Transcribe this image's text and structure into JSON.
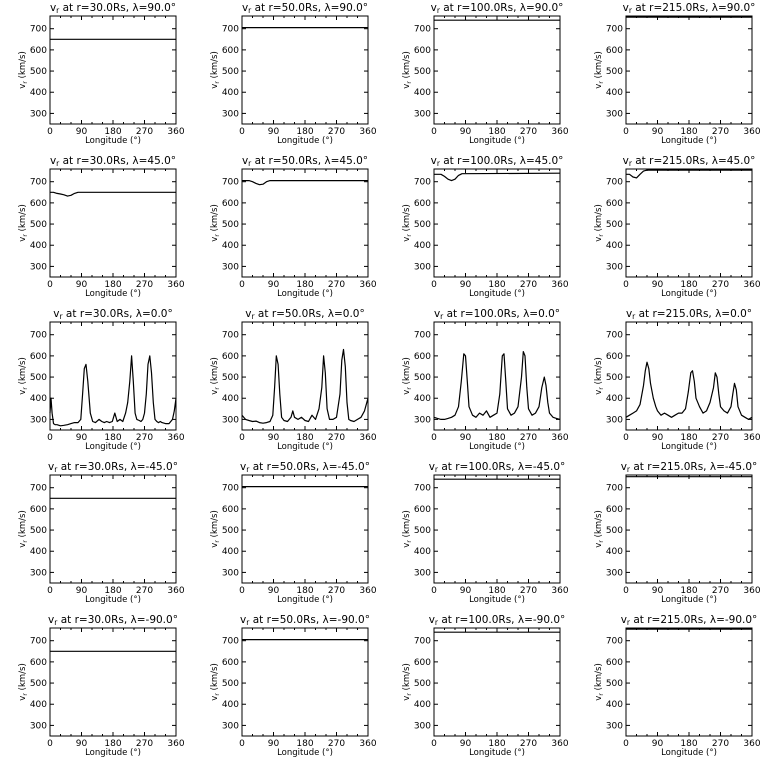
{
  "figure": {
    "background": "#ffffff",
    "line_color": "#000000"
  },
  "chart_data": [
    {
      "type": "line",
      "title_r": "30.0",
      "title_lambda": "90.0",
      "xlabel": "Longitude",
      "xunit": "(°)",
      "ylabel": "(km/s)",
      "xlim": [
        0,
        360
      ],
      "ylim": [
        250,
        760
      ],
      "xticks": [
        "0",
        "90",
        "180",
        "270",
        "360"
      ],
      "yticks": [
        "300",
        "400",
        "500",
        "600",
        "700"
      ],
      "x": [
        0,
        360
      ],
      "y": [
        650,
        650
      ]
    },
    {
      "type": "line",
      "title_r": "50.0",
      "title_lambda": "90.0",
      "xlabel": "Longitude",
      "xunit": "(°)",
      "ylabel": "(km/s)",
      "xlim": [
        0,
        360
      ],
      "ylim": [
        250,
        760
      ],
      "xticks": [
        "0",
        "90",
        "180",
        "270",
        "360"
      ],
      "yticks": [
        "300",
        "400",
        "500",
        "600",
        "700"
      ],
      "x": [
        0,
        360
      ],
      "y": [
        705,
        705
      ]
    },
    {
      "type": "line",
      "title_r": "100.0",
      "title_lambda": "90.0",
      "xlabel": "Longitude",
      "xunit": "(°)",
      "ylabel": "(km/s)",
      "xlim": [
        0,
        360
      ],
      "ylim": [
        250,
        760
      ],
      "xticks": [
        "0",
        "90",
        "180",
        "270",
        "360"
      ],
      "yticks": [
        "300",
        "400",
        "500",
        "600",
        "700"
      ],
      "x": [
        0,
        360
      ],
      "y": [
        740,
        740
      ]
    },
    {
      "type": "line",
      "title_r": "215.0",
      "title_lambda": "90.0",
      "xlabel": "Longitude",
      "xunit": "(°)",
      "ylabel": "(km/s)",
      "xlim": [
        0,
        360
      ],
      "ylim": [
        250,
        760
      ],
      "xticks": [
        "0",
        "90",
        "180",
        "270",
        "360"
      ],
      "yticks": [
        "300",
        "400",
        "500",
        "600",
        "700"
      ],
      "x": [
        0,
        360
      ],
      "y": [
        755,
        755
      ]
    },
    {
      "type": "line",
      "title_r": "30.0",
      "title_lambda": "45.0",
      "xlabel": "Longitude",
      "xunit": "(°)",
      "ylabel": "(km/s)",
      "xlim": [
        0,
        360
      ],
      "ylim": [
        250,
        760
      ],
      "xticks": [
        "0",
        "90",
        "180",
        "270",
        "360"
      ],
      "yticks": [
        "300",
        "400",
        "500",
        "600",
        "700"
      ],
      "x": [
        0,
        10,
        20,
        30,
        40,
        50,
        60,
        70,
        80,
        90,
        360
      ],
      "y": [
        650,
        650,
        645,
        642,
        638,
        632,
        636,
        645,
        650,
        650,
        650
      ]
    },
    {
      "type": "line",
      "title_r": "50.0",
      "title_lambda": "45.0",
      "xlabel": "Longitude",
      "xunit": "(°)",
      "ylabel": "(km/s)",
      "xlim": [
        0,
        360
      ],
      "ylim": [
        250,
        760
      ],
      "xticks": [
        "0",
        "90",
        "180",
        "270",
        "360"
      ],
      "yticks": [
        "300",
        "400",
        "500",
        "600",
        "700"
      ],
      "x": [
        0,
        20,
        30,
        40,
        50,
        60,
        70,
        80,
        360
      ],
      "y": [
        705,
        705,
        700,
        692,
        686,
        688,
        700,
        705,
        705
      ]
    },
    {
      "type": "line",
      "title_r": "100.0",
      "title_lambda": "45.0",
      "xlabel": "Longitude",
      "xunit": "(°)",
      "ylabel": "(km/s)",
      "xlim": [
        0,
        360
      ],
      "ylim": [
        250,
        760
      ],
      "xticks": [
        "0",
        "90",
        "180",
        "270",
        "360"
      ],
      "yticks": [
        "300",
        "400",
        "500",
        "600",
        "700"
      ],
      "x": [
        0,
        20,
        30,
        40,
        50,
        60,
        70,
        80,
        360
      ],
      "y": [
        735,
        735,
        725,
        712,
        705,
        712,
        730,
        738,
        740
      ]
    },
    {
      "type": "line",
      "title_r": "215.0",
      "title_lambda": "45.0",
      "xlabel": "Longitude",
      "xunit": "(°)",
      "ylabel": "(km/s)",
      "xlim": [
        0,
        360
      ],
      "ylim": [
        250,
        760
      ],
      "xticks": [
        "0",
        "90",
        "180",
        "270",
        "360"
      ],
      "yticks": [
        "300",
        "400",
        "500",
        "600",
        "700"
      ],
      "x": [
        0,
        10,
        20,
        30,
        40,
        50,
        60,
        360
      ],
      "y": [
        735,
        735,
        722,
        718,
        735,
        750,
        755,
        755
      ]
    },
    {
      "type": "line",
      "title_r": "30.0",
      "title_lambda": "0.0",
      "xlabel": "Longitude",
      "xunit": "(°)",
      "ylabel": "(km/s)",
      "xlim": [
        0,
        360
      ],
      "ylim": [
        250,
        760
      ],
      "xticks": [
        "0",
        "90",
        "180",
        "270",
        "360"
      ],
      "yticks": [
        "300",
        "400",
        "500",
        "600",
        "700"
      ],
      "x": [
        0,
        3,
        6,
        10,
        15,
        20,
        30,
        40,
        50,
        60,
        70,
        80,
        88,
        93,
        98,
        103,
        108,
        115,
        122,
        130,
        140,
        148,
        155,
        162,
        170,
        178,
        185,
        192,
        200,
        208,
        216,
        222,
        228,
        233,
        238,
        243,
        248,
        255,
        260,
        265,
        270,
        275,
        280,
        285,
        290,
        295,
        300,
        305,
        310,
        315,
        320,
        330,
        340,
        350,
        355,
        360
      ],
      "y": [
        330,
        400,
        330,
        280,
        275,
        275,
        270,
        272,
        275,
        280,
        285,
        285,
        300,
        420,
        540,
        560,
        480,
        330,
        290,
        285,
        300,
        290,
        285,
        290,
        285,
        290,
        330,
        290,
        300,
        290,
        330,
        380,
        480,
        600,
        480,
        330,
        300,
        295,
        290,
        300,
        330,
        420,
        560,
        600,
        520,
        380,
        300,
        290,
        285,
        290,
        285,
        280,
        280,
        300,
        340,
        400
      ]
    },
    {
      "type": "line",
      "title_r": "50.0",
      "title_lambda": "0.0",
      "xlabel": "Longitude",
      "xunit": "(°)",
      "ylabel": "(km/s)",
      "xlim": [
        0,
        360
      ],
      "ylim": [
        250,
        760
      ],
      "xticks": [
        "0",
        "90",
        "180",
        "270",
        "360"
      ],
      "yticks": [
        "300",
        "400",
        "500",
        "600",
        "700"
      ],
      "x": [
        0,
        10,
        20,
        30,
        40,
        50,
        60,
        70,
        80,
        88,
        93,
        98,
        103,
        108,
        113,
        120,
        130,
        140,
        145,
        150,
        160,
        170,
        180,
        190,
        200,
        210,
        220,
        228,
        233,
        238,
        243,
        250,
        260,
        270,
        280,
        285,
        290,
        295,
        300,
        305,
        310,
        320,
        330,
        340,
        350,
        360
      ],
      "y": [
        320,
        300,
        295,
        290,
        292,
        285,
        282,
        285,
        290,
        320,
        450,
        600,
        560,
        420,
        310,
        295,
        290,
        310,
        340,
        310,
        300,
        310,
        295,
        290,
        320,
        300,
        350,
        450,
        600,
        520,
        350,
        300,
        300,
        310,
        420,
        580,
        630,
        550,
        380,
        300,
        295,
        290,
        300,
        310,
        340,
        400
      ]
    },
    {
      "type": "line",
      "title_r": "100.0",
      "title_lambda": "0.0",
      "xlabel": "Longitude",
      "xunit": "(°)",
      "ylabel": "(km/s)",
      "xlim": [
        0,
        360
      ],
      "ylim": [
        250,
        760
      ],
      "xticks": [
        "0",
        "90",
        "180",
        "270",
        "360"
      ],
      "yticks": [
        "300",
        "400",
        "500",
        "600",
        "700"
      ],
      "x": [
        0,
        10,
        20,
        30,
        40,
        50,
        60,
        70,
        78,
        85,
        90,
        95,
        100,
        110,
        120,
        130,
        140,
        150,
        160,
        170,
        180,
        188,
        195,
        200,
        205,
        210,
        220,
        230,
        240,
        250,
        255,
        260,
        265,
        270,
        280,
        290,
        300,
        308,
        315,
        320,
        325,
        330,
        340,
        350,
        360
      ],
      "y": [
        310,
        305,
        300,
        300,
        305,
        310,
        320,
        360,
        480,
        610,
        600,
        480,
        360,
        320,
        310,
        330,
        320,
        340,
        310,
        320,
        330,
        420,
        600,
        610,
        480,
        350,
        320,
        330,
        360,
        500,
        620,
        600,
        450,
        350,
        320,
        330,
        360,
        450,
        500,
        460,
        380,
        330,
        310,
        305,
        300
      ]
    },
    {
      "type": "line",
      "title_r": "215.0",
      "title_lambda": "0.0",
      "xlabel": "Longitude",
      "xunit": "(°)",
      "ylabel": "(km/s)",
      "xlim": [
        0,
        360
      ],
      "ylim": [
        250,
        760
      ],
      "xticks": [
        "0",
        "90",
        "180",
        "270",
        "360"
      ],
      "yticks": [
        "300",
        "400",
        "500",
        "600",
        "700"
      ],
      "x": [
        0,
        10,
        20,
        30,
        40,
        50,
        55,
        60,
        65,
        70,
        78,
        85,
        90,
        100,
        110,
        120,
        130,
        140,
        150,
        160,
        170,
        178,
        185,
        190,
        195,
        200,
        210,
        220,
        230,
        240,
        250,
        255,
        260,
        265,
        270,
        280,
        290,
        300,
        305,
        310,
        315,
        320,
        330,
        340,
        350,
        360
      ],
      "y": [
        310,
        320,
        330,
        340,
        370,
        460,
        530,
        570,
        540,
        470,
        400,
        360,
        340,
        320,
        330,
        320,
        310,
        320,
        330,
        330,
        350,
        430,
        520,
        530,
        480,
        400,
        360,
        330,
        340,
        380,
        450,
        520,
        500,
        420,
        360,
        340,
        330,
        360,
        420,
        470,
        440,
        360,
        320,
        310,
        300,
        310
      ]
    },
    {
      "type": "line",
      "title_r": "30.0",
      "title_lambda": "-45.0",
      "xlabel": "Longitude",
      "xunit": "(°)",
      "ylabel": "(km/s)",
      "xlim": [
        0,
        360
      ],
      "ylim": [
        250,
        760
      ],
      "xticks": [
        "0",
        "90",
        "180",
        "270",
        "360"
      ],
      "yticks": [
        "300",
        "400",
        "500",
        "600",
        "700"
      ],
      "x": [
        0,
        360
      ],
      "y": [
        650,
        650
      ]
    },
    {
      "type": "line",
      "title_r": "50.0",
      "title_lambda": "-45.0",
      "xlabel": "Longitude",
      "xunit": "(°)",
      "ylabel": "(km/s)",
      "xlim": [
        0,
        360
      ],
      "ylim": [
        250,
        760
      ],
      "xticks": [
        "0",
        "90",
        "180",
        "270",
        "360"
      ],
      "yticks": [
        "300",
        "400",
        "500",
        "600",
        "700"
      ],
      "x": [
        0,
        360
      ],
      "y": [
        705,
        705
      ]
    },
    {
      "type": "line",
      "title_r": "100.0",
      "title_lambda": "-45.0",
      "xlabel": "Longitude",
      "xunit": "(°)",
      "ylabel": "(km/s)",
      "xlim": [
        0,
        360
      ],
      "ylim": [
        250,
        760
      ],
      "xticks": [
        "0",
        "90",
        "180",
        "270",
        "360"
      ],
      "yticks": [
        "300",
        "400",
        "500",
        "600",
        "700"
      ],
      "x": [
        0,
        360
      ],
      "y": [
        740,
        740
      ]
    },
    {
      "type": "line",
      "title_r": "215.0",
      "title_lambda": "-45.0",
      "xlabel": "Longitude",
      "xunit": "(°)",
      "ylabel": "(km/s)",
      "xlim": [
        0,
        360
      ],
      "ylim": [
        250,
        760
      ],
      "xticks": [
        "0",
        "90",
        "180",
        "270",
        "360"
      ],
      "yticks": [
        "300",
        "400",
        "500",
        "600",
        "700"
      ],
      "x": [
        0,
        360
      ],
      "y": [
        752,
        752
      ]
    },
    {
      "type": "line",
      "title_r": "30.0",
      "title_lambda": "-90.0",
      "xlabel": "Longitude",
      "xunit": "(°)",
      "ylabel": "(km/s)",
      "xlim": [
        0,
        360
      ],
      "ylim": [
        250,
        760
      ],
      "xticks": [
        "0",
        "90",
        "180",
        "270",
        "360"
      ],
      "yticks": [
        "300",
        "400",
        "500",
        "600",
        "700"
      ],
      "x": [
        0,
        360
      ],
      "y": [
        650,
        650
      ]
    },
    {
      "type": "line",
      "title_r": "50.0",
      "title_lambda": "-90.0",
      "xlabel": "Longitude",
      "xunit": "(°)",
      "ylabel": "(km/s)",
      "xlim": [
        0,
        360
      ],
      "ylim": [
        250,
        760
      ],
      "xticks": [
        "0",
        "90",
        "180",
        "270",
        "360"
      ],
      "yticks": [
        "300",
        "400",
        "500",
        "600",
        "700"
      ],
      "x": [
        0,
        360
      ],
      "y": [
        705,
        705
      ]
    },
    {
      "type": "line",
      "title_r": "100.0",
      "title_lambda": "-90.0",
      "xlabel": "Longitude",
      "xunit": "(°)",
      "ylabel": "(km/s)",
      "xlim": [
        0,
        360
      ],
      "ylim": [
        250,
        760
      ],
      "xticks": [
        "0",
        "90",
        "180",
        "270",
        "360"
      ],
      "yticks": [
        "300",
        "400",
        "500",
        "600",
        "700"
      ],
      "x": [
        0,
        360
      ],
      "y": [
        740,
        740
      ]
    },
    {
      "type": "line",
      "title_r": "215.0",
      "title_lambda": "-90.0",
      "xlabel": "Longitude",
      "xunit": "(°)",
      "ylabel": "(km/s)",
      "xlim": [
        0,
        360
      ],
      "ylim": [
        250,
        760
      ],
      "xticks": [
        "0",
        "90",
        "180",
        "270",
        "360"
      ],
      "yticks": [
        "300",
        "400",
        "500",
        "600",
        "700"
      ],
      "x": [
        0,
        360
      ],
      "y": [
        755,
        755
      ]
    }
  ]
}
